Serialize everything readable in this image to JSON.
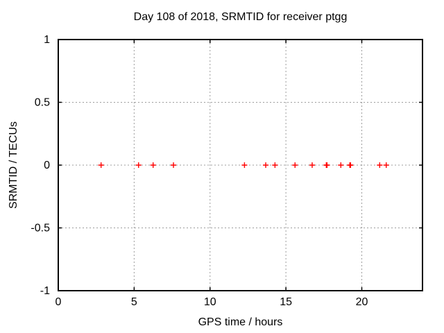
{
  "chart_data": {
    "type": "scatter",
    "title": "Day 108 of 2018, SRMTID for receiver ptgg",
    "xlabel": "GPS time / hours",
    "ylabel": "SRMTID / TECUs",
    "xlim": [
      0,
      24
    ],
    "ylim": [
      -1,
      1
    ],
    "xticks": [
      0,
      5,
      10,
      15,
      20
    ],
    "yticks": [
      1,
      0.5,
      0,
      -0.5,
      -1
    ],
    "grid": true,
    "legend": "none",
    "series": [
      {
        "name": "SRMTID",
        "marker": "plus",
        "color": "#ff0000",
        "x": [
          2.82,
          5.29,
          6.25,
          7.59,
          12.27,
          13.67,
          14.28,
          15.6,
          16.73,
          17.66,
          17.71,
          18.62,
          19.21,
          19.26,
          21.18,
          21.61
        ],
        "y": [
          0,
          0,
          0,
          0,
          0,
          0,
          0,
          0,
          0,
          0,
          0,
          0,
          0,
          0,
          0,
          0
        ]
      }
    ]
  },
  "colors": {
    "background": "#ffffff",
    "axis": "#000000",
    "grid": "#9c9c9c",
    "text": "#000000",
    "marker": "#ff0000"
  }
}
